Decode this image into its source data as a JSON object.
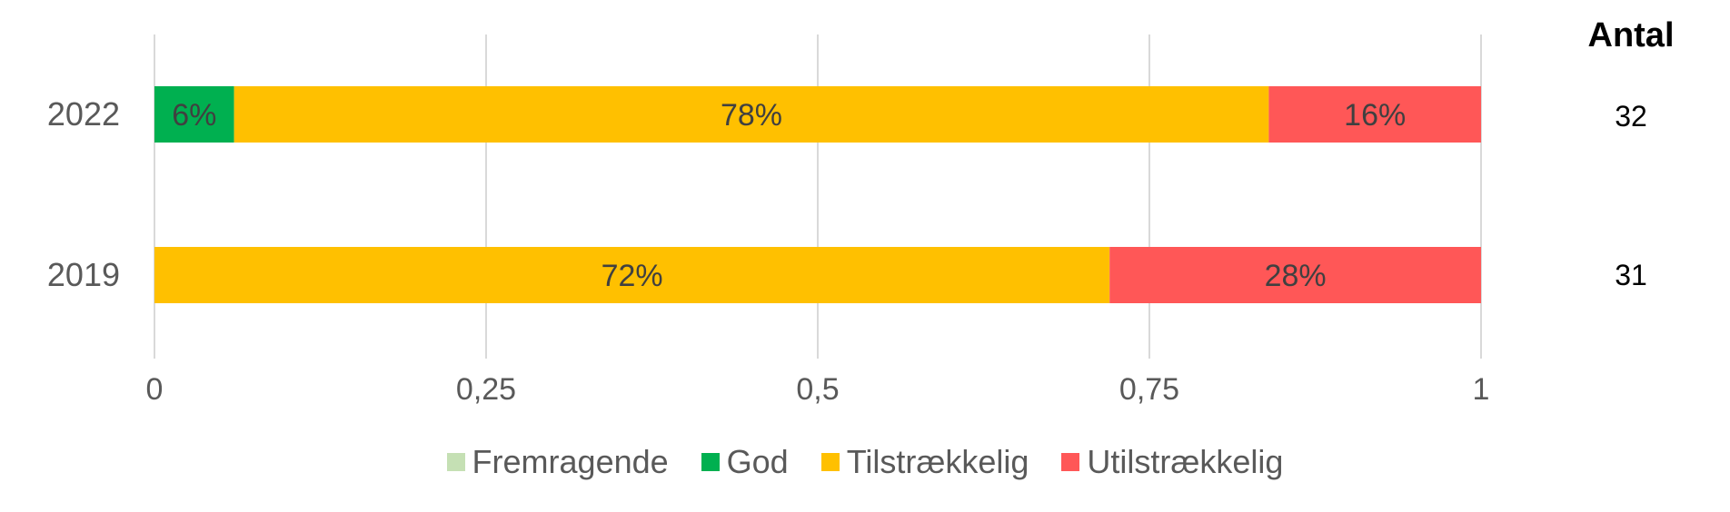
{
  "chart_data": {
    "type": "bar",
    "orientation": "horizontal",
    "stacked": true,
    "categories": [
      "2022",
      "2019"
    ],
    "series": [
      {
        "name": "Fremragende",
        "color": "#C5E0B4",
        "values": [
          0,
          0
        ],
        "labels": [
          "",
          ""
        ]
      },
      {
        "name": "God",
        "color": "#00B050",
        "values": [
          0.06,
          0
        ],
        "labels": [
          "6%",
          ""
        ]
      },
      {
        "name": "Tilstrækkelig",
        "color": "#FFC000",
        "values": [
          0.78,
          0.72
        ],
        "labels": [
          "78%",
          "72%"
        ]
      },
      {
        "name": "Utilstrækkelig",
        "color": "#FF5757",
        "values": [
          0.16,
          0.28
        ],
        "labels": [
          "16%",
          "28%"
        ]
      }
    ],
    "xlim": [
      0,
      1
    ],
    "xticks": [
      "0",
      "0,25",
      "0,5",
      "0,75",
      "1"
    ],
    "grid": true,
    "legend": "bottom"
  },
  "count": {
    "header": "Antal",
    "values": [
      "32",
      "31"
    ]
  }
}
